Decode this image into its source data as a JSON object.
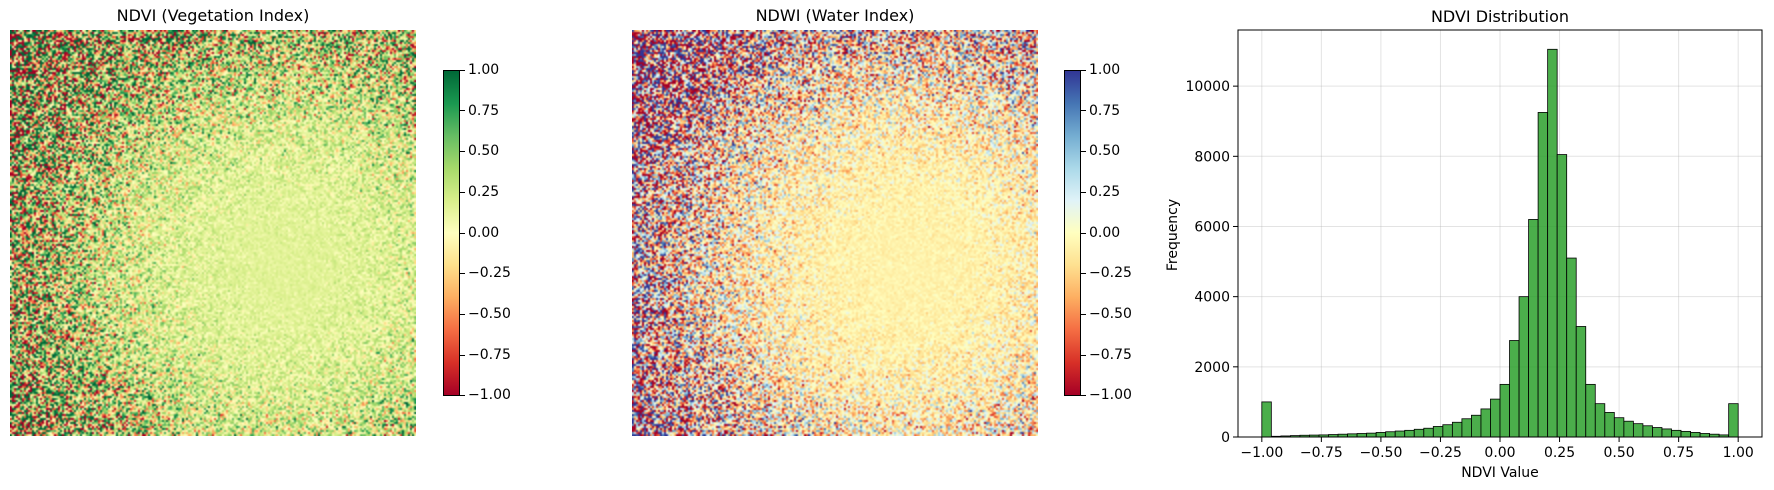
{
  "ndvi_panel": {
    "title": "NDVI (Vegetation Index)",
    "colorbar_ticks": [
      "1.00",
      "0.75",
      "0.50",
      "0.25",
      "0.00",
      "−0.25",
      "−0.50",
      "−0.75",
      "−1.00"
    ],
    "colormap": "RdYlGn",
    "value_range": [
      -1.0,
      1.0
    ]
  },
  "ndwi_panel": {
    "title": "NDWI (Water Index)",
    "colorbar_ticks": [
      "1.00",
      "0.75",
      "0.50",
      "0.25",
      "0.00",
      "−0.25",
      "−0.50",
      "−0.75",
      "−1.00"
    ],
    "colormap": "RdYlBu",
    "value_range": [
      -1.0,
      1.0
    ]
  },
  "chart_data": [
    {
      "type": "heatmap",
      "title": "NDVI (Vegetation Index)",
      "colormap": "RdYlGn",
      "vmin": -1.0,
      "vmax": 1.0,
      "colorbar": true,
      "axes": "off"
    },
    {
      "type": "heatmap",
      "title": "NDWI (Water Index)",
      "colormap": "RdYlBu",
      "vmin": -1.0,
      "vmax": 1.0,
      "colorbar": true,
      "axes": "off"
    },
    {
      "type": "bar",
      "subtype": "histogram",
      "title": "NDVI Distribution",
      "xlabel": "NDVI Value",
      "ylabel": "Frequency",
      "xlim": [
        -1.1,
        1.1
      ],
      "ylim": [
        0,
        11600
      ],
      "xticks": [
        "−1.00",
        "−0.75",
        "−0.50",
        "−0.25",
        "0.00",
        "0.25",
        "0.50",
        "0.75",
        "1.00"
      ],
      "yticks": [
        "0",
        "2000",
        "4000",
        "6000",
        "8000",
        "10000"
      ],
      "grid": true,
      "bar_color": "#2ca02c",
      "bin_range": [
        -1.0,
        1.0
      ],
      "bins": 50,
      "values": [
        1000,
        20,
        30,
        40,
        50,
        55,
        60,
        70,
        80,
        90,
        100,
        110,
        130,
        150,
        170,
        190,
        220,
        250,
        300,
        350,
        420,
        520,
        620,
        800,
        1080,
        1500,
        2750,
        4000,
        6200,
        9250,
        11050,
        8050,
        5100,
        3150,
        1500,
        950,
        700,
        550,
        450,
        380,
        320,
        270,
        230,
        190,
        160,
        130,
        100,
        80,
        60,
        950
      ]
    }
  ]
}
